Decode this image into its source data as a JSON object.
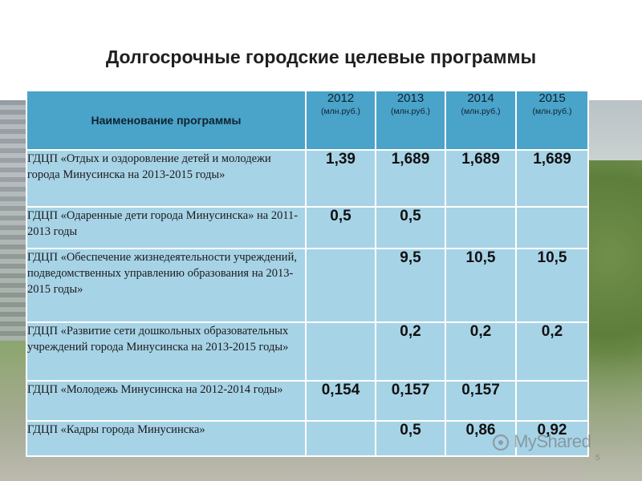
{
  "title": "Долгосрочные городские целевые программы",
  "table": {
    "header": {
      "name": "Наименование программы",
      "years": [
        {
          "year": "2012",
          "unit": "(млн.руб.)"
        },
        {
          "year": "2013",
          "unit": "(млн.руб.)"
        },
        {
          "year": "2014",
          "unit": "(млн.руб.)"
        },
        {
          "year": "2015",
          "unit": "(млн.руб.)"
        }
      ]
    },
    "rows": [
      {
        "name": "ГДЦП «Отдых и оздоровление детей и молодежи города Минусинска на 2013-2015 годы»",
        "values": [
          "1,39",
          "1,689",
          "1,689",
          "1,689"
        ]
      },
      {
        "name": "ГДЦП «Одаренные дети города Минусинска» на 2011-2013 годы",
        "values": [
          "0,5",
          "0,5",
          "",
          ""
        ]
      },
      {
        "name": "ГДЦП «Обеспечение жизнедеятельности учреждений, подведомственных управлению образования  на 2013-2015 годы»",
        "values": [
          "",
          "9,5",
          "10,5",
          "10,5"
        ]
      },
      {
        "name": "ГДЦП «Развитие сети дошкольных образовательных учреждений города Минусинска на 2013-2015 годы»",
        "values": [
          "",
          "0,2",
          "0,2",
          "0,2"
        ]
      },
      {
        "name": "ГДЦП «Молодежь Минусинска на 2012-2014 годы»",
        "values": [
          "0,154",
          "0,157",
          "0,157",
          ""
        ]
      },
      {
        "name": "ГДЦП «Кадры города Минусинска»",
        "values": [
          "",
          "0,5",
          "0,86",
          "0,92"
        ]
      }
    ]
  },
  "watermark": "MyShared",
  "page_number": "5"
}
